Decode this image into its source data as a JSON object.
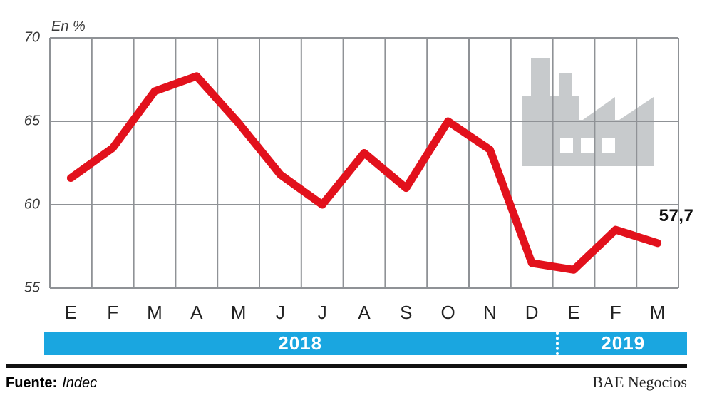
{
  "colors": {
    "line_red": "#e2111c",
    "band_blue": "#1aa6e0",
    "icon_gray": "#c7cacc",
    "grid_gray": "#8f9296"
  },
  "chart": {
    "unit_label": "En %",
    "end_value_label": "57,7"
  },
  "chart_data": {
    "type": "line",
    "title": "",
    "unit_label": "En %",
    "categories": [
      "E",
      "F",
      "M",
      "A",
      "M",
      "J",
      "J",
      "A",
      "S",
      "O",
      "N",
      "D",
      "E",
      "F",
      "M"
    ],
    "values": [
      61.6,
      63.4,
      66.8,
      67.7,
      64.9,
      61.8,
      60.0,
      63.1,
      61.0,
      65.0,
      63.3,
      56.5,
      56.1,
      58.5,
      57.7
    ],
    "ylim": [
      55,
      70
    ],
    "yticks": [
      70,
      65,
      60,
      55
    ],
    "grid": "on",
    "legend": "none",
    "last_point_label": "57,7",
    "year_bands": [
      {
        "label": "2018",
        "months": 12
      },
      {
        "label": "2019",
        "months": 3
      }
    ]
  },
  "footer": {
    "source_label": "Fuente:",
    "source_name": "Indec",
    "credit": "BAE Negocios"
  }
}
